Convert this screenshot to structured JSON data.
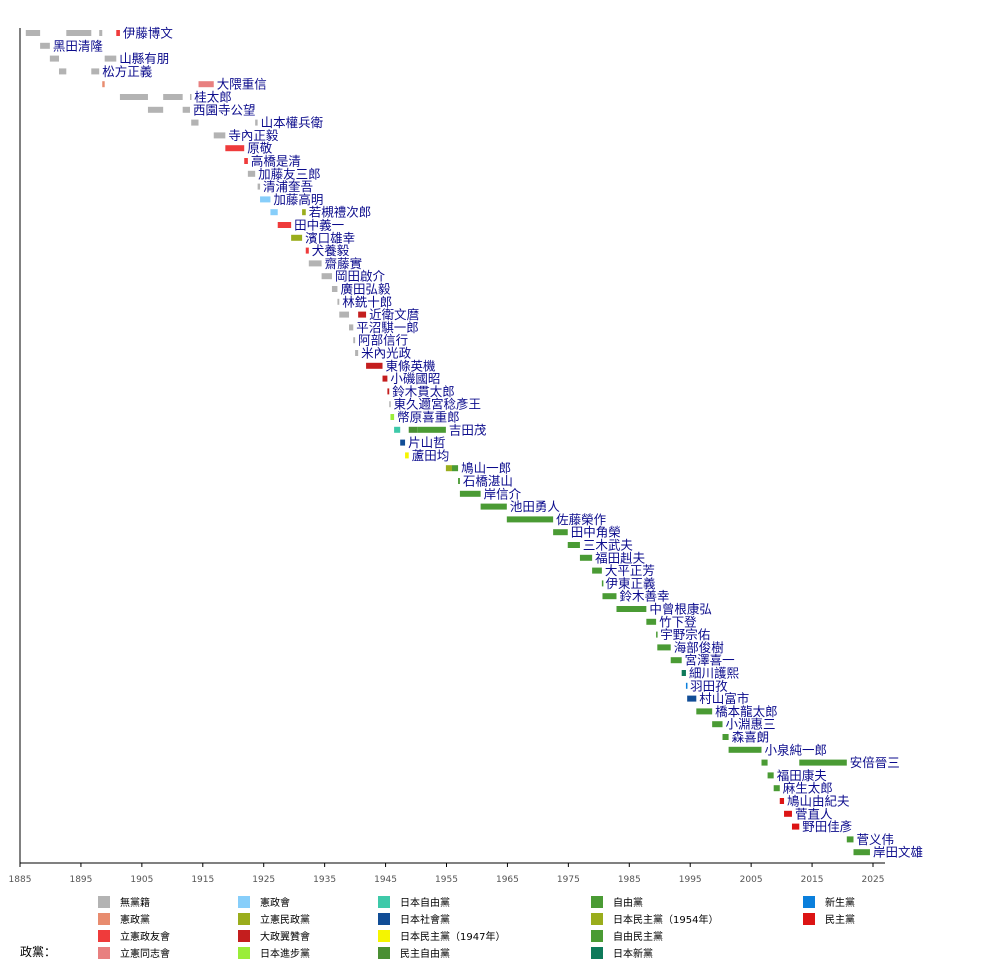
{
  "chart_data": {
    "type": "bar",
    "xlim": [
      1885,
      2025
    ],
    "x_ticks": [
      1885,
      1895,
      1905,
      1915,
      1925,
      1935,
      1945,
      1955,
      1965,
      1975,
      1985,
      1995,
      2005,
      2015,
      2025
    ],
    "legend_title": "政黨：",
    "legend_placement": "bottom",
    "parties": {
      "none": {
        "name": "無黨籍",
        "color": "#b3b3b3"
      },
      "kenseito": {
        "name": "憲政黨",
        "color": "#e88c6f"
      },
      "seiyukai": {
        "name": "立憲政友會",
        "color": "#ef3b3b"
      },
      "doshikai": {
        "name": "立憲同志會",
        "color": "#e88080"
      },
      "kenseikai": {
        "name": "憲政會",
        "color": "#87cefa"
      },
      "minseito": {
        "name": "立憲民政黨",
        "color": "#9aad1c"
      },
      "taisei": {
        "name": "大政翼贊會",
        "color": "#c41e1e"
      },
      "shimpo": {
        "name": "日本進步黨",
        "color": "#9aed3a"
      },
      "jiyuto46": {
        "name": "日本自由黨",
        "color": "#3ec9a9"
      },
      "socialist": {
        "name": "日本社會黨",
        "color": "#114d96"
      },
      "democratic47": {
        "name": "日本民主黨（1947年）",
        "color": "#f5f500"
      },
      "minjiyu": {
        "name": "民主自由黨",
        "color": "#4a8f33"
      },
      "liberal": {
        "name": "自由黨",
        "color": "#4a9b34"
      },
      "democratic54": {
        "name": "日本民主黨（1954年）",
        "color": "#9aad1c"
      },
      "ldp": {
        "name": "自由民主黨",
        "color": "#4a9b34"
      },
      "jnp": {
        "name": "日本新黨",
        "color": "#0e7a5a"
      },
      "shinsei": {
        "name": "新生黨",
        "color": "#0a7fdc"
      },
      "dpj": {
        "name": "民主黨",
        "color": "#dc1414"
      }
    },
    "legend_order": [
      [
        "none",
        "kenseito",
        "seiyukai",
        "doshikai"
      ],
      [
        "kenseikai",
        "minseito",
        "taisei",
        "shimpo"
      ],
      [
        "jiyuto46",
        "socialist",
        "democratic47",
        "minjiyu"
      ],
      [
        "liberal",
        "democratic54",
        "ldp",
        "jnp"
      ],
      [
        "shinsei",
        "dpj"
      ]
    ],
    "series": [
      {
        "name": "伊藤博文",
        "terms": [
          [
            1885.95,
            1888.3,
            "none"
          ],
          [
            1892.6,
            1896.7,
            "none"
          ],
          [
            1898.0,
            1898.5,
            "none"
          ],
          [
            1900.8,
            1901.4,
            "seiyukai"
          ]
        ]
      },
      {
        "name": "黑田清隆",
        "terms": [
          [
            1888.3,
            1889.9,
            "none"
          ]
        ]
      },
      {
        "name": "山縣有朋",
        "terms": [
          [
            1889.9,
            1891.4,
            "none"
          ],
          [
            1898.9,
            1900.8,
            "none"
          ]
        ]
      },
      {
        "name": "松方正義",
        "terms": [
          [
            1891.4,
            1892.6,
            "none"
          ],
          [
            1896.7,
            1898.0,
            "none"
          ]
        ]
      },
      {
        "name": "大隈重信",
        "terms": [
          [
            1898.5,
            1898.9,
            "kenseito"
          ],
          [
            1914.3,
            1916.8,
            "doshikai"
          ]
        ]
      },
      {
        "name": "桂太郎",
        "terms": [
          [
            1901.4,
            1906.0,
            "none"
          ],
          [
            1908.5,
            1911.7,
            "none"
          ],
          [
            1912.9,
            1913.1,
            "none"
          ]
        ]
      },
      {
        "name": "西園寺公望",
        "terms": [
          [
            1906.0,
            1908.5,
            "none"
          ],
          [
            1911.7,
            1912.9,
            "none"
          ]
        ]
      },
      {
        "name": "山本權兵衛",
        "terms": [
          [
            1913.1,
            1914.3,
            "none"
          ],
          [
            1923.6,
            1924.0,
            "none"
          ]
        ]
      },
      {
        "name": "寺內正毅",
        "terms": [
          [
            1916.8,
            1918.7,
            "none"
          ]
        ]
      },
      {
        "name": "原敬",
        "terms": [
          [
            1918.7,
            1921.8,
            "seiyukai"
          ]
        ]
      },
      {
        "name": "高橋是清",
        "terms": [
          [
            1921.8,
            1922.4,
            "seiyukai"
          ]
        ]
      },
      {
        "name": "加藤友三郎",
        "terms": [
          [
            1922.4,
            1923.6,
            "none"
          ]
        ]
      },
      {
        "name": "清浦奎吾",
        "terms": [
          [
            1924.0,
            1924.4,
            "none"
          ]
        ]
      },
      {
        "name": "加藤高明",
        "terms": [
          [
            1924.4,
            1926.1,
            "kenseikai"
          ]
        ]
      },
      {
        "name": "若槻禮次郎",
        "terms": [
          [
            1926.1,
            1927.3,
            "kenseikai"
          ],
          [
            1931.3,
            1931.9,
            "minseito"
          ]
        ]
      },
      {
        "name": "田中義一",
        "terms": [
          [
            1927.3,
            1929.5,
            "seiyukai"
          ]
        ]
      },
      {
        "name": "濱口雄幸",
        "terms": [
          [
            1929.5,
            1931.3,
            "minseito"
          ]
        ]
      },
      {
        "name": "犬養毅",
        "terms": [
          [
            1931.9,
            1932.4,
            "seiyukai"
          ]
        ]
      },
      {
        "name": "齋藤實",
        "terms": [
          [
            1932.4,
            1934.5,
            "none"
          ]
        ]
      },
      {
        "name": "岡田啟介",
        "terms": [
          [
            1934.5,
            1936.2,
            "none"
          ]
        ]
      },
      {
        "name": "廣田弘毅",
        "terms": [
          [
            1936.2,
            1937.1,
            "none"
          ]
        ]
      },
      {
        "name": "林銑十郎",
        "terms": [
          [
            1937.1,
            1937.4,
            "none"
          ]
        ]
      },
      {
        "name": "近衛文麿",
        "terms": [
          [
            1937.4,
            1939.0,
            "none"
          ],
          [
            1940.5,
            1941.8,
            "taisei"
          ]
        ]
      },
      {
        "name": "平沼騏一郎",
        "terms": [
          [
            1939.0,
            1939.7,
            "none"
          ]
        ]
      },
      {
        "name": "阿部信行",
        "terms": [
          [
            1939.7,
            1940.0,
            "none"
          ]
        ]
      },
      {
        "name": "米內光政",
        "terms": [
          [
            1940.0,
            1940.5,
            "none"
          ]
        ]
      },
      {
        "name": "東條英機",
        "terms": [
          [
            1941.8,
            1944.5,
            "taisei"
          ]
        ]
      },
      {
        "name": "小磯國昭",
        "terms": [
          [
            1944.5,
            1945.3,
            "taisei"
          ]
        ]
      },
      {
        "name": "鈴木貫太郎",
        "terms": [
          [
            1945.3,
            1945.6,
            "taisei"
          ]
        ]
      },
      {
        "name": "東久邇宮稔彥王",
        "terms": [
          [
            1945.6,
            1945.8,
            "none"
          ]
        ]
      },
      {
        "name": "幣原喜重郎",
        "terms": [
          [
            1945.8,
            1946.4,
            "shimpo"
          ]
        ]
      },
      {
        "name": "吉田茂",
        "terms": [
          [
            1946.4,
            1947.4,
            "jiyuto46"
          ],
          [
            1948.8,
            1950.2,
            "minjiyu"
          ],
          [
            1950.2,
            1954.9,
            "liberal"
          ]
        ]
      },
      {
        "name": "片山哲",
        "terms": [
          [
            1947.4,
            1948.2,
            "socialist"
          ]
        ]
      },
      {
        "name": "蘆田均",
        "terms": [
          [
            1948.2,
            1948.8,
            "democratic47"
          ]
        ]
      },
      {
        "name": "鳩山一郎",
        "terms": [
          [
            1954.9,
            1955.9,
            "democratic54"
          ],
          [
            1955.9,
            1956.9,
            "ldp"
          ]
        ]
      },
      {
        "name": "石橋湛山",
        "terms": [
          [
            1956.9,
            1957.2,
            "ldp"
          ]
        ]
      },
      {
        "name": "岸信介",
        "terms": [
          [
            1957.2,
            1960.6,
            "ldp"
          ]
        ]
      },
      {
        "name": "池田勇人",
        "terms": [
          [
            1960.6,
            1964.9,
            "ldp"
          ]
        ]
      },
      {
        "name": "佐藤榮作",
        "terms": [
          [
            1964.9,
            1972.5,
            "ldp"
          ]
        ]
      },
      {
        "name": "田中角榮",
        "terms": [
          [
            1972.5,
            1974.9,
            "ldp"
          ]
        ]
      },
      {
        "name": "三木武夫",
        "terms": [
          [
            1974.9,
            1976.9,
            "ldp"
          ]
        ]
      },
      {
        "name": "福田赳夫",
        "terms": [
          [
            1976.9,
            1978.9,
            "ldp"
          ]
        ]
      },
      {
        "name": "大平正芳",
        "terms": [
          [
            1978.9,
            1980.5,
            "ldp"
          ]
        ]
      },
      {
        "name": "伊東正義",
        "terms": [
          [
            1980.5,
            1980.6,
            "ldp"
          ]
        ]
      },
      {
        "name": "鈴木善幸",
        "terms": [
          [
            1980.6,
            1982.9,
            "ldp"
          ]
        ]
      },
      {
        "name": "中曾根康弘",
        "terms": [
          [
            1982.9,
            1987.8,
            "ldp"
          ]
        ]
      },
      {
        "name": "竹下登",
        "terms": [
          [
            1987.8,
            1989.4,
            "ldp"
          ]
        ]
      },
      {
        "name": "宇野宗佑",
        "terms": [
          [
            1989.4,
            1989.6,
            "ldp"
          ]
        ]
      },
      {
        "name": "海部俊樹",
        "terms": [
          [
            1989.6,
            1991.8,
            "ldp"
          ]
        ]
      },
      {
        "name": "宮澤喜一",
        "terms": [
          [
            1991.8,
            1993.6,
            "ldp"
          ]
        ]
      },
      {
        "name": "細川護熙",
        "terms": [
          [
            1993.6,
            1994.3,
            "jnp"
          ]
        ]
      },
      {
        "name": "羽田孜",
        "terms": [
          [
            1994.3,
            1994.5,
            "shinsei"
          ]
        ]
      },
      {
        "name": "村山富市",
        "terms": [
          [
            1994.5,
            1996.0,
            "socialist"
          ]
        ]
      },
      {
        "name": "橋本龍太郎",
        "terms": [
          [
            1996.0,
            1998.6,
            "ldp"
          ]
        ]
      },
      {
        "name": "小淵惠三",
        "terms": [
          [
            1998.6,
            2000.3,
            "ldp"
          ]
        ]
      },
      {
        "name": "森喜朗",
        "terms": [
          [
            2000.3,
            2001.3,
            "ldp"
          ]
        ]
      },
      {
        "name": "小泉純一郎",
        "terms": [
          [
            2001.3,
            2006.7,
            "ldp"
          ]
        ]
      },
      {
        "name": "安倍晉三",
        "terms": [
          [
            2006.7,
            2007.7,
            "ldp"
          ],
          [
            2012.9,
            2020.7,
            "ldp"
          ]
        ]
      },
      {
        "name": "福田康夫",
        "terms": [
          [
            2007.7,
            2008.7,
            "ldp"
          ]
        ]
      },
      {
        "name": "麻生太郎",
        "terms": [
          [
            2008.7,
            2009.7,
            "ldp"
          ]
        ]
      },
      {
        "name": "鳩山由紀夫",
        "terms": [
          [
            2009.7,
            2010.4,
            "dpj"
          ]
        ]
      },
      {
        "name": "菅直人",
        "terms": [
          [
            2010.4,
            2011.7,
            "dpj"
          ]
        ]
      },
      {
        "name": "野田佳彥",
        "terms": [
          [
            2011.7,
            2012.9,
            "dpj"
          ]
        ]
      },
      {
        "name": "菅义伟",
        "terms": [
          [
            2020.7,
            2021.8,
            "ldp"
          ]
        ]
      },
      {
        "name": "岸田文雄",
        "terms": [
          [
            2021.8,
            2024.5,
            "ldp"
          ]
        ]
      }
    ]
  }
}
